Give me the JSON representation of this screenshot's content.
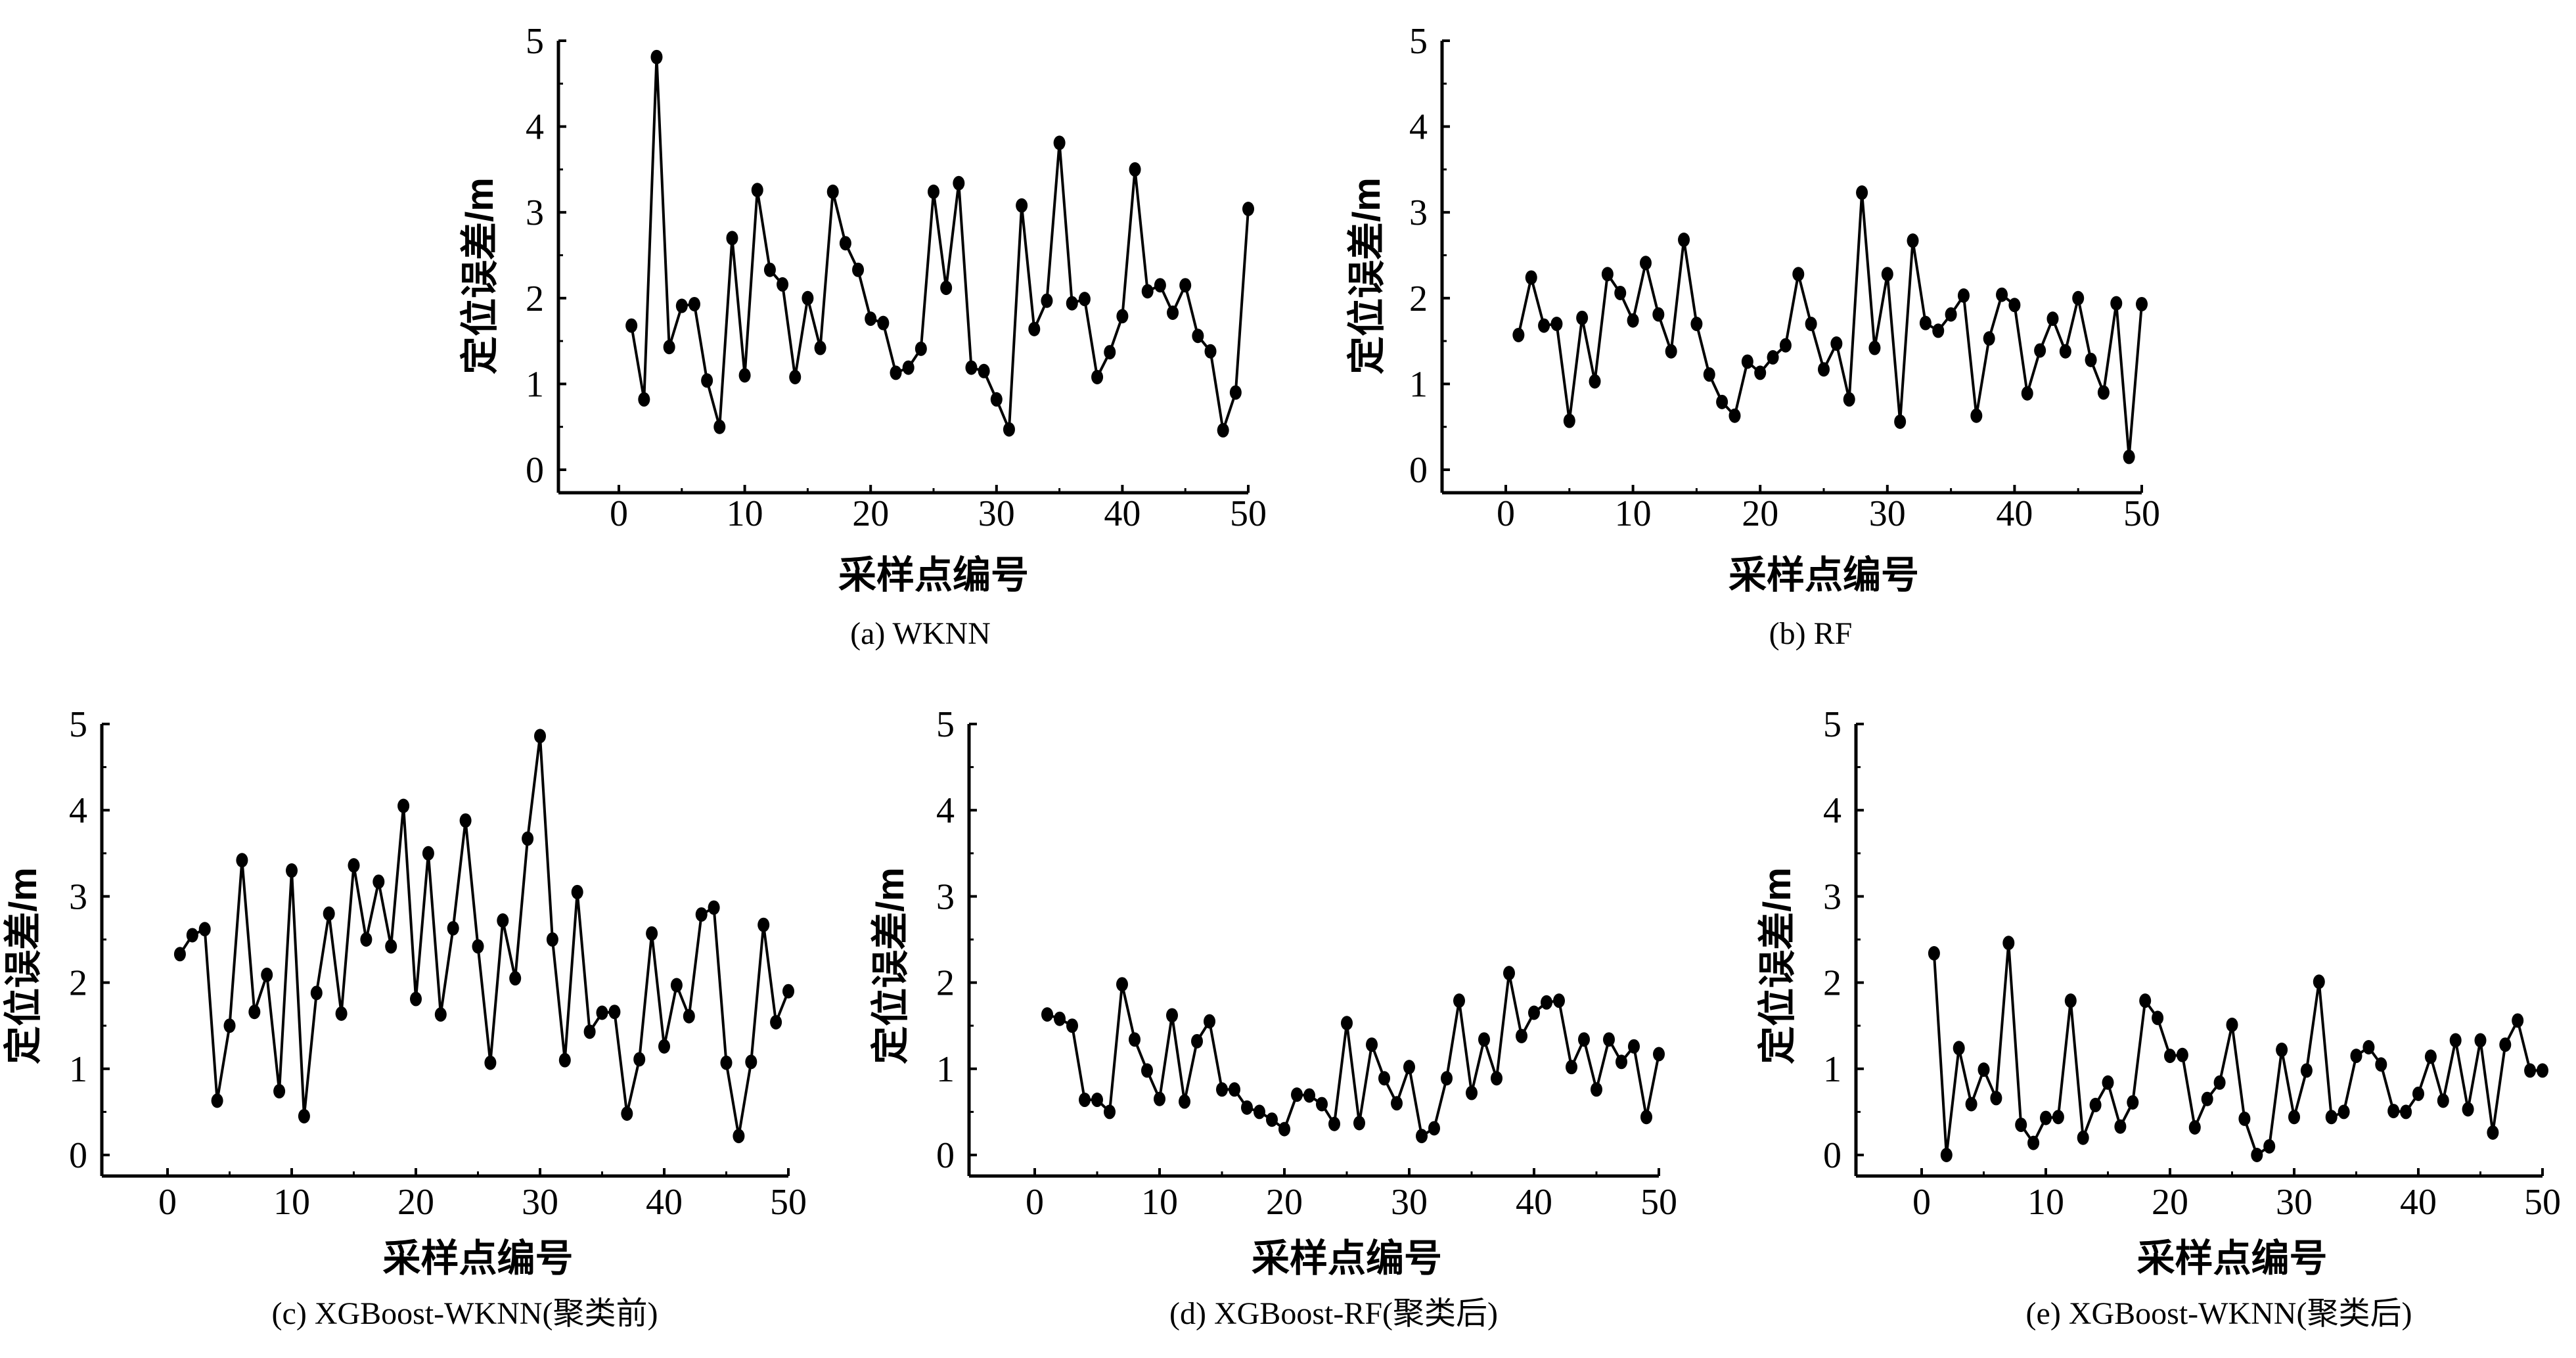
{
  "chart_data": [
    {
      "type": "line",
      "caption": "(a) WKNN",
      "xlabel": "采样点编号",
      "ylabel": "定位误差/m",
      "xlim": [
        -5,
        50
      ],
      "ylim": [
        -0.27,
        5
      ],
      "xticks": [
        0,
        10,
        20,
        30,
        40,
        50
      ],
      "yticks": [
        0,
        1,
        2,
        3,
        4,
        5
      ],
      "marker": "circle",
      "grid": false,
      "x": [
        1,
        2,
        3,
        4,
        5,
        6,
        7,
        8,
        9,
        10,
        11,
        12,
        13,
        14,
        15,
        16,
        17,
        18,
        19,
        20,
        21,
        22,
        23,
        24,
        25,
        26,
        27,
        28,
        29,
        30,
        31,
        32,
        33,
        34,
        35,
        36,
        37,
        38,
        39,
        40,
        41,
        42,
        43,
        44,
        45,
        46,
        47,
        48,
        49,
        50
      ],
      "values": [
        1.68,
        0.82,
        4.81,
        1.43,
        1.91,
        1.93,
        1.04,
        0.5,
        2.7,
        1.1,
        3.26,
        2.33,
        2.16,
        1.08,
        2.0,
        1.42,
        3.24,
        2.64,
        2.33,
        1.76,
        1.71,
        1.13,
        1.19,
        1.41,
        3.24,
        2.12,
        3.34,
        1.19,
        1.15,
        0.82,
        0.47,
        3.08,
        1.64,
        1.97,
        3.81,
        1.94,
        1.99,
        1.08,
        1.37,
        1.79,
        3.5,
        2.08,
        2.15,
        1.83,
        2.15,
        1.56,
        1.38,
        0.46,
        0.9,
        3.04
      ]
    },
    {
      "type": "line",
      "caption": "(b) RF",
      "xlabel": "采样点编号",
      "ylabel": "定位误差/m",
      "xlim": [
        -5,
        50
      ],
      "ylim": [
        -0.27,
        5
      ],
      "xticks": [
        0,
        10,
        20,
        30,
        40,
        50
      ],
      "yticks": [
        0,
        1,
        2,
        3,
        4,
        5
      ],
      "marker": "circle",
      "grid": false,
      "x": [
        1,
        2,
        3,
        4,
        5,
        6,
        7,
        8,
        9,
        10,
        11,
        12,
        13,
        14,
        15,
        16,
        17,
        18,
        19,
        20,
        21,
        22,
        23,
        24,
        25,
        26,
        27,
        28,
        29,
        30,
        31,
        32,
        33,
        34,
        35,
        36,
        37,
        38,
        39,
        40,
        41,
        42,
        43,
        44,
        45,
        46,
        47,
        48,
        49,
        50
      ],
      "values": [
        1.57,
        2.24,
        1.68,
        1.7,
        0.57,
        1.77,
        1.03,
        2.28,
        2.06,
        1.74,
        2.41,
        1.81,
        1.38,
        2.68,
        1.7,
        1.11,
        0.79,
        0.63,
        1.26,
        1.13,
        1.31,
        1.45,
        2.28,
        1.7,
        1.17,
        1.47,
        0.82,
        3.23,
        1.42,
        2.28,
        0.56,
        2.67,
        1.71,
        1.62,
        1.81,
        2.03,
        0.63,
        1.53,
        2.04,
        1.92,
        0.89,
        1.39,
        1.76,
        1.38,
        2.0,
        1.28,
        0.9,
        1.94,
        0.15,
        1.93
      ]
    },
    {
      "type": "line",
      "caption": "(c) XGBoost-WKNN(聚类前)",
      "xlabel": "采样点编号",
      "ylabel": "定位误差/m",
      "xlim": [
        -5,
        50
      ],
      "ylim": [
        -0.27,
        5
      ],
      "xticks": [
        0,
        10,
        20,
        30,
        40,
        50
      ],
      "yticks": [
        0,
        1,
        2,
        3,
        4,
        5
      ],
      "marker": "circle",
      "grid": false,
      "x": [
        1,
        2,
        3,
        4,
        5,
        6,
        7,
        8,
        9,
        10,
        11,
        12,
        13,
        14,
        15,
        16,
        17,
        18,
        19,
        20,
        21,
        22,
        23,
        24,
        25,
        26,
        27,
        28,
        29,
        30,
        31,
        32,
        33,
        34,
        35,
        36,
        37,
        38,
        39,
        40,
        41,
        42,
        43,
        44,
        45,
        46,
        47,
        48,
        49,
        50
      ],
      "values": [
        2.33,
        2.55,
        2.62,
        0.63,
        1.5,
        3.42,
        1.66,
        2.09,
        0.74,
        3.3,
        0.45,
        1.88,
        2.8,
        1.64,
        3.36,
        2.5,
        3.17,
        2.42,
        4.05,
        1.81,
        3.5,
        1.63,
        2.63,
        3.88,
        2.42,
        1.07,
        2.72,
        2.05,
        3.67,
        4.86,
        2.5,
        1.1,
        3.05,
        1.43,
        1.65,
        1.66,
        0.48,
        1.11,
        2.57,
        1.26,
        1.97,
        1.61,
        2.79,
        2.87,
        1.07,
        0.22,
        1.08,
        2.67,
        1.54,
        1.9
      ]
    },
    {
      "type": "line",
      "caption": "(d) XGBoost-RF(聚类后)",
      "xlabel": "采样点编号",
      "ylabel": "定位误差/m",
      "xlim": [
        -5,
        50
      ],
      "ylim": [
        -0.27,
        5
      ],
      "xticks": [
        0,
        10,
        20,
        30,
        40,
        50
      ],
      "yticks": [
        0,
        1,
        2,
        3,
        4,
        5
      ],
      "marker": "circle",
      "grid": false,
      "x": [
        1,
        2,
        3,
        4,
        5,
        6,
        7,
        8,
        9,
        10,
        11,
        12,
        13,
        14,
        15,
        16,
        17,
        18,
        19,
        20,
        21,
        22,
        23,
        24,
        25,
        26,
        27,
        28,
        29,
        30,
        31,
        32,
        33,
        34,
        35,
        36,
        37,
        38,
        39,
        40,
        41,
        42,
        43,
        44,
        45,
        46,
        47,
        48,
        49,
        50
      ],
      "values": [
        1.63,
        1.58,
        1.5,
        0.64,
        0.64,
        0.5,
        1.98,
        1.34,
        0.98,
        0.65,
        1.62,
        0.62,
        1.32,
        1.55,
        0.76,
        0.76,
        0.55,
        0.5,
        0.41,
        0.3,
        0.7,
        0.69,
        0.59,
        0.36,
        1.53,
        0.37,
        1.28,
        0.89,
        0.6,
        1.02,
        0.22,
        0.31,
        0.89,
        1.79,
        0.72,
        1.34,
        0.89,
        2.11,
        1.38,
        1.65,
        1.77,
        1.79,
        1.02,
        1.34,
        0.76,
        1.34,
        1.08,
        1.26,
        0.44,
        1.17
      ]
    },
    {
      "type": "line",
      "caption": "(e) XGBoost-WKNN(聚类后)",
      "xlabel": "采样点编号",
      "ylabel": "定位误差/m",
      "xlim": [
        -5,
        50
      ],
      "ylim": [
        -0.27,
        5
      ],
      "xticks": [
        0,
        10,
        20,
        30,
        40,
        50
      ],
      "yticks": [
        0,
        1,
        2,
        3,
        4,
        5
      ],
      "marker": "circle",
      "grid": false,
      "x": [
        1,
        2,
        3,
        4,
        5,
        6,
        7,
        8,
        9,
        10,
        11,
        12,
        13,
        14,
        15,
        16,
        17,
        18,
        19,
        20,
        21,
        22,
        23,
        24,
        25,
        26,
        27,
        28,
        29,
        30,
        31,
        32,
        33,
        34,
        35,
        36,
        37,
        38,
        39,
        40,
        41,
        42,
        43,
        44,
        45,
        46,
        47,
        48,
        49,
        50
      ],
      "values": [
        2.34,
        0.0,
        1.24,
        0.59,
        0.99,
        0.66,
        2.46,
        0.35,
        0.14,
        0.43,
        0.44,
        1.79,
        0.2,
        0.58,
        0.84,
        0.33,
        0.61,
        1.79,
        1.59,
        1.15,
        1.16,
        0.32,
        0.65,
        0.84,
        1.51,
        0.42,
        0.0,
        0.1,
        1.22,
        0.44,
        0.98,
        2.01,
        0.44,
        0.5,
        1.15,
        1.25,
        1.05,
        0.51,
        0.5,
        0.71,
        1.14,
        0.63,
        1.33,
        0.53,
        1.33,
        0.26,
        1.28,
        1.56,
        0.98,
        0.98
      ]
    }
  ]
}
